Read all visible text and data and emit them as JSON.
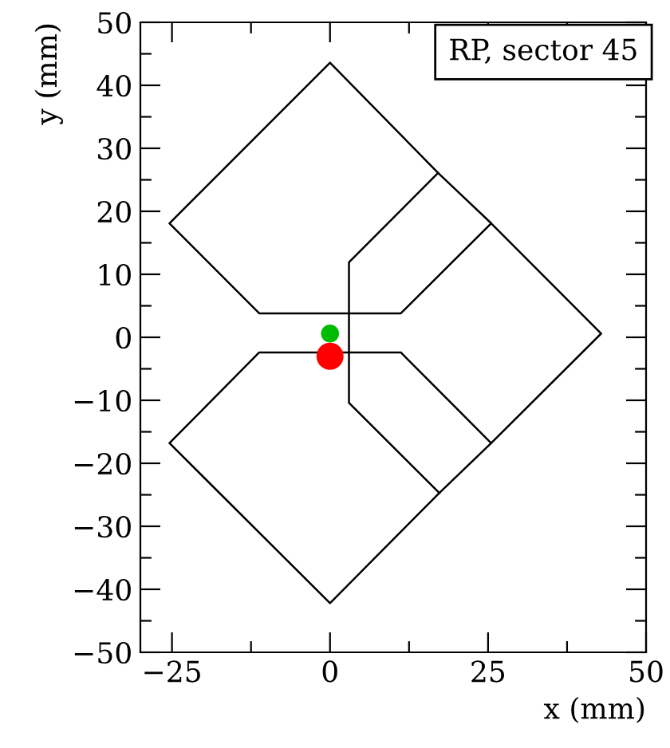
{
  "chart_data": {
    "type": "line",
    "xlabel": "x (mm)",
    "ylabel": "y (mm)",
    "annotations": [
      "RP, sector 45"
    ],
    "xlim": [
      -30,
      50
    ],
    "ylim": [
      -50,
      50
    ],
    "xticks": [
      -25,
      {
        "value": -12.5,
        "label": null
      },
      0,
      {
        "value": 12.5,
        "label": null
      },
      25,
      {
        "value": 37.5,
        "label": null
      },
      50
    ],
    "yticks": [
      -50,
      {
        "value": -45,
        "label": null
      },
      -40,
      {
        "value": -35,
        "label": null
      },
      -30,
      {
        "value": -25,
        "label": null
      },
      -20,
      {
        "value": -15,
        "label": null
      },
      -10,
      {
        "value": -5,
        "label": null
      },
      0,
      {
        "value": 5,
        "label": null
      },
      10,
      {
        "value": 15,
        "label": null
      },
      20,
      {
        "value": 25,
        "label": null
      },
      30,
      {
        "value": 35,
        "label": null
      },
      40,
      {
        "value": 45,
        "label": null
      },
      50
    ],
    "grid": false,
    "legend": false,
    "line_style": "solid",
    "series": [
      {
        "color": "#000000",
        "x": [
          25.5,
          11.2,
          -11.2,
          -25.4,
          0,
          17.1,
          25.5,
          42.9,
          25.5,
          17.3,
          0,
          -25.4,
          -11.2,
          11.2,
          25.5
        ],
        "values": [
          18.1,
          3.8,
          3.8,
          18.1,
          43.6,
          26.1,
          18.1,
          0.6,
          -16.8,
          -24.7,
          -42.2,
          -16.8,
          -2.4,
          -2.4,
          -16.8
        ]
      },
      {
        "color": "#000000",
        "x": [
          17.1,
          3,
          3,
          17.3
        ],
        "values": [
          26.1,
          11.9,
          -10.4,
          -24.7
        ]
      },
      {
        "type": "bubble",
        "x": [
          0,
          0
        ],
        "values": [
          0.6,
          -3.0
        ],
        "sizes": [
          0.44,
          1
        ],
        "colors": [
          "#00bb00",
          "#ff0000"
        ]
      }
    ]
  }
}
